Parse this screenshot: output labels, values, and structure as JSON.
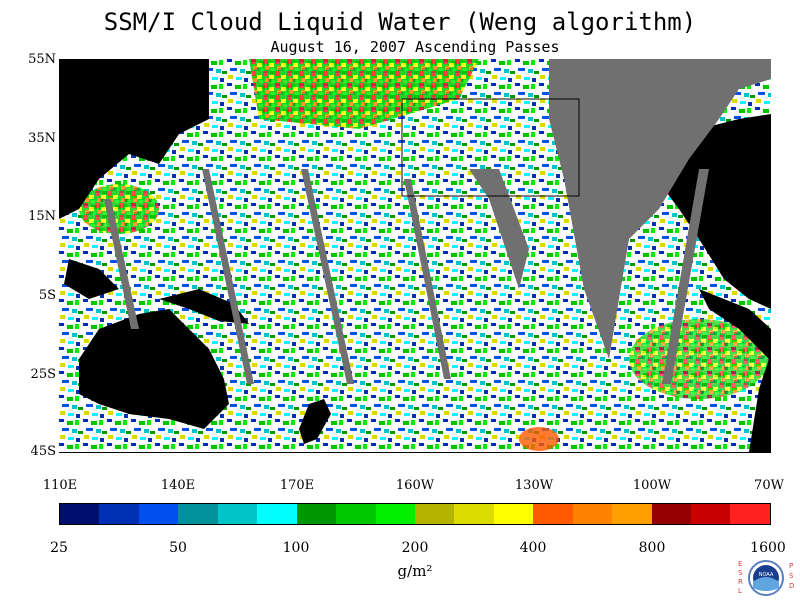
{
  "title": "SSM/I Cloud Liquid Water (Weng algorithm)",
  "subtitle": "August 16, 2007  Ascending Passes",
  "lat_labels": [
    "55N",
    "35N",
    "15N",
    "5S",
    "25S",
    "45S"
  ],
  "lon_labels": [
    "110E",
    "140E",
    "170E",
    "160W",
    "130W",
    "100W",
    "70W"
  ],
  "colorbar": {
    "colors": [
      "#000e6e",
      "#0030b4",
      "#0050f0",
      "#00929a",
      "#00c4c8",
      "#00ffff",
      "#009600",
      "#00c800",
      "#00f000",
      "#b4b400",
      "#dcdc00",
      "#ffff00",
      "#ff5a00",
      "#ff8200",
      "#ffa000",
      "#960000",
      "#c80000",
      "#ff2020"
    ],
    "labels": [
      "25",
      "50",
      "100",
      "200",
      "400",
      "800",
      "1600"
    ],
    "unit": "g/m²"
  },
  "logo": {
    "left_letters": "ESRL",
    "right_letters": "PSD",
    "center_text": "NOAA"
  }
}
